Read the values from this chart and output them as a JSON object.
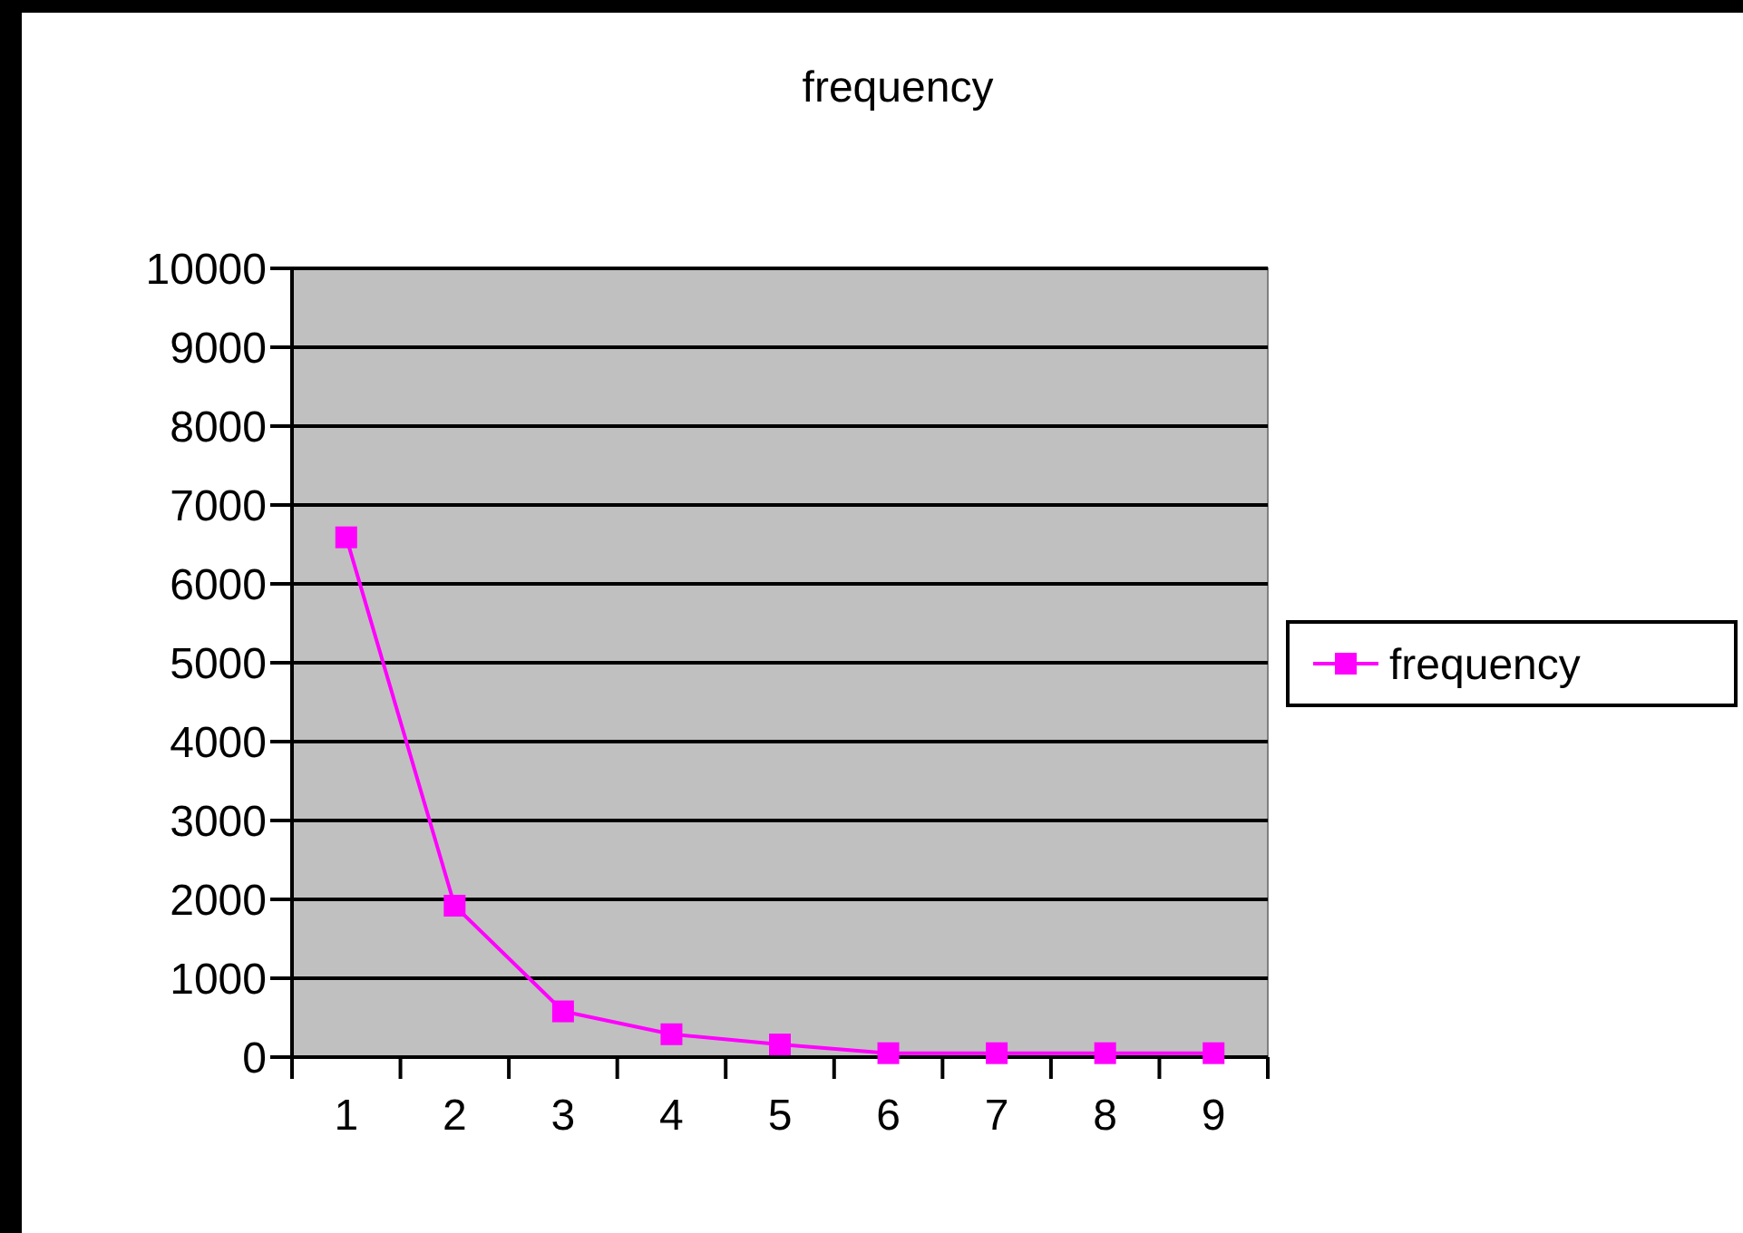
{
  "chart_data": {
    "type": "line",
    "title": "frequency",
    "categories": [
      "1",
      "2",
      "3",
      "4",
      "5",
      "6",
      "7",
      "8",
      "9"
    ],
    "series": [
      {
        "name": "frequency",
        "color": "#ff00ff",
        "values": [
          6590,
          1920,
          580,
          290,
          160,
          50,
          50,
          50,
          50
        ]
      }
    ],
    "ylim": [
      0,
      10000
    ],
    "yticks": [
      0,
      1000,
      2000,
      3000,
      4000,
      5000,
      6000,
      7000,
      8000,
      9000,
      10000
    ],
    "grid": "y",
    "legend": "right",
    "marker": "square"
  }
}
